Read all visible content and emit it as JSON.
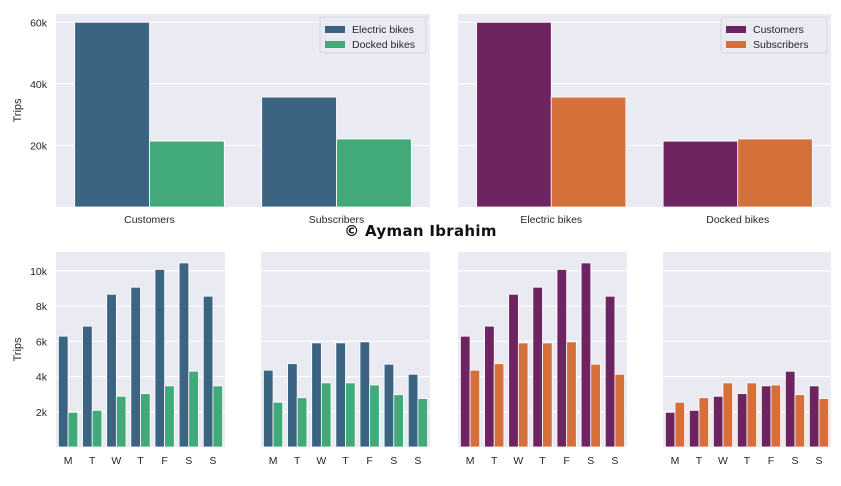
{
  "credit": "© Ayman Ibrahim",
  "chart_data": [
    {
      "type": "bar",
      "categories": [
        "Customers",
        "Subscribers"
      ],
      "series": [
        {
          "name": "Electric bikes",
          "color": "#3b6482",
          "values": [
            60000,
            35700
          ]
        },
        {
          "name": "Docked bikes",
          "color": "#42aa78",
          "values": [
            21400,
            22100
          ]
        }
      ],
      "ylabel": "Trips",
      "yticks": [
        20000,
        40000,
        60000
      ],
      "ytick_labels": [
        "20k",
        "40k",
        "60k"
      ],
      "ylim": [
        0,
        62700
      ],
      "grid": true,
      "legend": "top-right",
      "background": "#eaeaf2"
    },
    {
      "type": "bar",
      "categories": [
        "Electric bikes",
        "Docked bikes"
      ],
      "series": [
        {
          "name": "Customers",
          "color": "#6f2462",
          "values": [
            60000,
            21400
          ]
        },
        {
          "name": "Subscribers",
          "color": "#d5703a",
          "values": [
            35700,
            22100
          ]
        }
      ],
      "ylabel": "",
      "yticks": [
        20000,
        40000,
        60000
      ],
      "ytick_labels": [],
      "ylim": [
        0,
        62700
      ],
      "grid": true,
      "legend": "top-right",
      "background": "#eaeaf2"
    },
    {
      "type": "bar",
      "categories": [
        "M",
        "T",
        "W",
        "T",
        "F",
        "S",
        "S"
      ],
      "series": [
        {
          "color": "#3b6482",
          "values": [
            6290,
            6860,
            8670,
            9070,
            10080,
            10450,
            8560
          ]
        },
        {
          "color": "#42aa78",
          "values": [
            1970,
            2080,
            2880,
            3030,
            3470,
            4300,
            3470
          ]
        }
      ],
      "ylabel": "Trips",
      "yticks": [
        2000,
        4000,
        6000,
        8000,
        10000
      ],
      "ytick_labels": [
        "2k",
        "4k",
        "6k",
        "8k",
        "10k"
      ],
      "ylim": [
        0,
        11070
      ],
      "grid": true,
      "background": "#eaeaf2"
    },
    {
      "type": "bar",
      "categories": [
        "M",
        "T",
        "W",
        "T",
        "F",
        "S",
        "S"
      ],
      "series": [
        {
          "color": "#3b6482",
          "values": [
            4360,
            4730,
            5910,
            5910,
            5970,
            4700,
            4130
          ]
        },
        {
          "color": "#42aa78",
          "values": [
            2540,
            2800,
            3640,
            3640,
            3520,
            2970,
            2750
          ]
        }
      ],
      "ylabel": "",
      "yticks": [
        2000,
        4000,
        6000,
        8000,
        10000
      ],
      "ytick_labels": [],
      "ylim": [
        0,
        11070
      ],
      "grid": true,
      "background": "#eaeaf2"
    },
    {
      "type": "bar",
      "categories": [
        "M",
        "T",
        "W",
        "T",
        "F",
        "S",
        "S"
      ],
      "series": [
        {
          "color": "#6f2462",
          "values": [
            6290,
            6860,
            8670,
            9070,
            10080,
            10450,
            8560
          ]
        },
        {
          "color": "#d5703a",
          "values": [
            4360,
            4730,
            5910,
            5910,
            5970,
            4700,
            4130
          ]
        }
      ],
      "ylabel": "",
      "yticks": [
        2000,
        4000,
        6000,
        8000,
        10000
      ],
      "ytick_labels": [],
      "ylim": [
        0,
        11070
      ],
      "grid": true,
      "background": "#eaeaf2"
    },
    {
      "type": "bar",
      "categories": [
        "M",
        "T",
        "W",
        "T",
        "F",
        "S",
        "S"
      ],
      "series": [
        {
          "color": "#6f2462",
          "values": [
            1970,
            2080,
            2880,
            3030,
            3470,
            4300,
            3470
          ]
        },
        {
          "color": "#d5703a",
          "values": [
            2540,
            2800,
            3640,
            3640,
            3520,
            2970,
            2750
          ]
        }
      ],
      "ylabel": "",
      "yticks": [
        2000,
        4000,
        6000,
        8000,
        10000
      ],
      "ytick_labels": [],
      "ylim": [
        0,
        11070
      ],
      "grid": true,
      "background": "#eaeaf2"
    }
  ]
}
